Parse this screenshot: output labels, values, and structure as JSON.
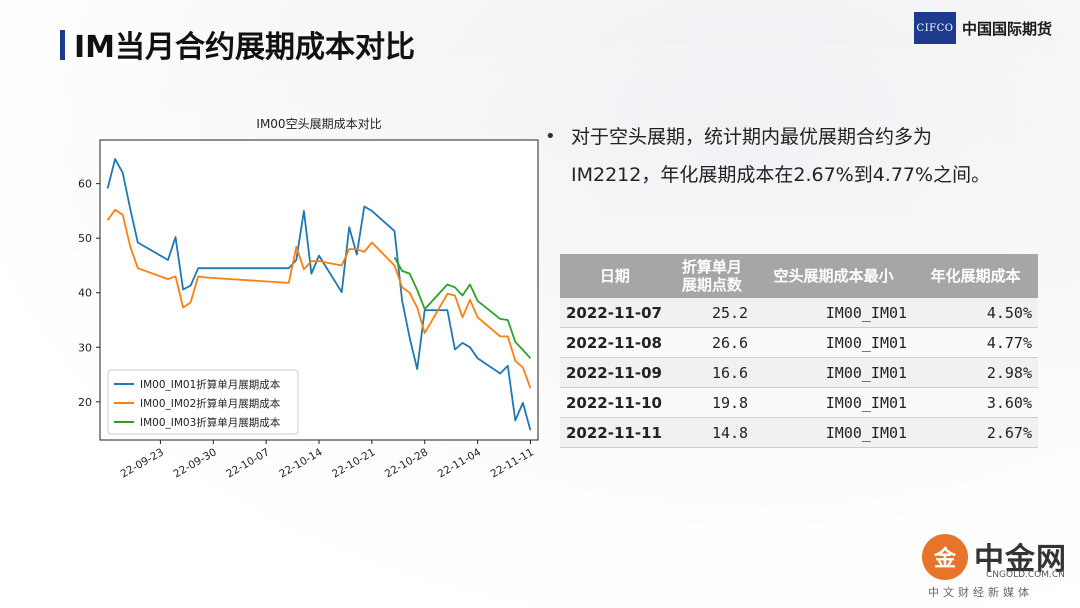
{
  "slide": {
    "title": "IM当月合约展期成本对比",
    "logo_mark": "CIFCO",
    "logo_text": "中国国际期货"
  },
  "bullet": {
    "line1": "对于空头展期，统计期内最优展期合约多为",
    "line2": "IM2212，年化展期成本在2.67%到4.77%之间。"
  },
  "table": {
    "headers": [
      "日期",
      "折算单月展期点数",
      "空头展期成本最小",
      "年化展期成本"
    ],
    "rows": [
      {
        "date": "2022-11-07",
        "points": "25.2",
        "contract": "IM00_IM01",
        "cost": "4.50%"
      },
      {
        "date": "2022-11-08",
        "points": "26.6",
        "contract": "IM00_IM01",
        "cost": "4.77%"
      },
      {
        "date": "2022-11-09",
        "points": "16.6",
        "contract": "IM00_IM01",
        "cost": "2.98%"
      },
      {
        "date": "2022-11-10",
        "points": "19.8",
        "contract": "IM00_IM01",
        "cost": "3.60%"
      },
      {
        "date": "2022-11-11",
        "points": "14.8",
        "contract": "IM00_IM01",
        "cost": "2.67%"
      }
    ]
  },
  "watermark": {
    "name": "中金网",
    "url": "CNGOLD.COM.CN",
    "sub": "中文财经新媒体"
  },
  "chart_data": {
    "type": "line",
    "title": "IM00空头展期成本对比",
    "xlabel": "",
    "ylabel": "",
    "xlim": [
      "2022-09-15",
      "2022-11-12"
    ],
    "ylim": [
      13,
      68
    ],
    "yticks": [
      20,
      30,
      40,
      50,
      60
    ],
    "xticks": [
      "2022-09-23",
      "2022-09-30",
      "2022-10-07",
      "2022-10-14",
      "2022-10-21",
      "2022-10-28",
      "2022-11-04",
      "2022-11-11"
    ],
    "xtick_labels": [
      "22-09-23",
      "22-09-30",
      "22-10-07",
      "22-10-14",
      "22-10-21",
      "22-10-28",
      "22-11-04",
      "22-11-11"
    ],
    "legend_position": "lower-left",
    "grid": false,
    "series": [
      {
        "name": "IM00_IM01折算单月展期成本",
        "color": "#1f77b4",
        "x": [
          "2022-09-16",
          "2022-09-17",
          "2022-09-18",
          "2022-09-19",
          "2022-09-20",
          "2022-09-24",
          "2022-09-25",
          "2022-09-26",
          "2022-09-27",
          "2022-09-28",
          "2022-09-29",
          "2022-10-10",
          "2022-10-11",
          "2022-10-12",
          "2022-10-13",
          "2022-10-14",
          "2022-10-17",
          "2022-10-18",
          "2022-10-19",
          "2022-10-20",
          "2022-10-21",
          "2022-10-24",
          "2022-10-25",
          "2022-10-26",
          "2022-10-27",
          "2022-10-28",
          "2022-10-31",
          "2022-11-01",
          "2022-11-02",
          "2022-11-03",
          "2022-11-04",
          "2022-11-07",
          "2022-11-08",
          "2022-11-09",
          "2022-11-10",
          "2022-11-11"
        ],
        "values": [
          59.1,
          64.5,
          62.0,
          55.4,
          49.2,
          46.0,
          50.2,
          40.6,
          41.3,
          44.5,
          44.5,
          44.5,
          46.0,
          55.0,
          43.5,
          46.8,
          40.1,
          52.0,
          47.0,
          55.8,
          55.0,
          51.3,
          38.6,
          31.8,
          26.0,
          36.8,
          36.8,
          29.6,
          30.8,
          30.0,
          28.0,
          25.2,
          26.6,
          16.6,
          19.8,
          14.8
        ]
      },
      {
        "name": "IM00_IM02折算单月展期成本",
        "color": "#ff7f0e",
        "x": [
          "2022-09-16",
          "2022-09-17",
          "2022-09-18",
          "2022-09-19",
          "2022-09-20",
          "2022-09-24",
          "2022-09-25",
          "2022-09-26",
          "2022-09-27",
          "2022-09-28",
          "2022-09-29",
          "2022-10-10",
          "2022-10-11",
          "2022-10-12",
          "2022-10-13",
          "2022-10-14",
          "2022-10-17",
          "2022-10-18",
          "2022-10-19",
          "2022-10-20",
          "2022-10-21",
          "2022-10-24",
          "2022-10-25",
          "2022-10-26",
          "2022-10-27",
          "2022-10-28",
          "2022-10-31",
          "2022-11-01",
          "2022-11-02",
          "2022-11-03",
          "2022-11-04",
          "2022-11-07",
          "2022-11-08",
          "2022-11-09",
          "2022-11-10",
          "2022-11-11"
        ],
        "values": [
          53.3,
          55.2,
          54.3,
          48.5,
          44.5,
          42.5,
          43.0,
          37.3,
          38.2,
          43.0,
          42.8,
          41.8,
          48.4,
          44.3,
          45.8,
          45.8,
          45.0,
          48.0,
          48.0,
          47.5,
          49.2,
          45.0,
          41.0,
          40.0,
          37.3,
          32.6,
          39.8,
          39.5,
          35.5,
          38.7,
          35.5,
          32.0,
          32.0,
          27.5,
          26.3,
          22.5
        ]
      },
      {
        "name": "IM00_IM03折算单月展期成本",
        "color": "#2ca02c",
        "x": [
          "2022-10-24",
          "2022-10-25",
          "2022-10-26",
          "2022-10-27",
          "2022-10-28",
          "2022-10-31",
          "2022-11-01",
          "2022-11-02",
          "2022-11-03",
          "2022-11-04",
          "2022-11-07",
          "2022-11-08",
          "2022-11-09",
          "2022-11-10",
          "2022-11-11"
        ],
        "values": [
          46.5,
          44.0,
          43.5,
          40.5,
          37.0,
          41.5,
          41.0,
          39.5,
          41.5,
          38.5,
          35.2,
          35.0,
          31.0,
          29.5,
          28.0
        ]
      }
    ]
  }
}
